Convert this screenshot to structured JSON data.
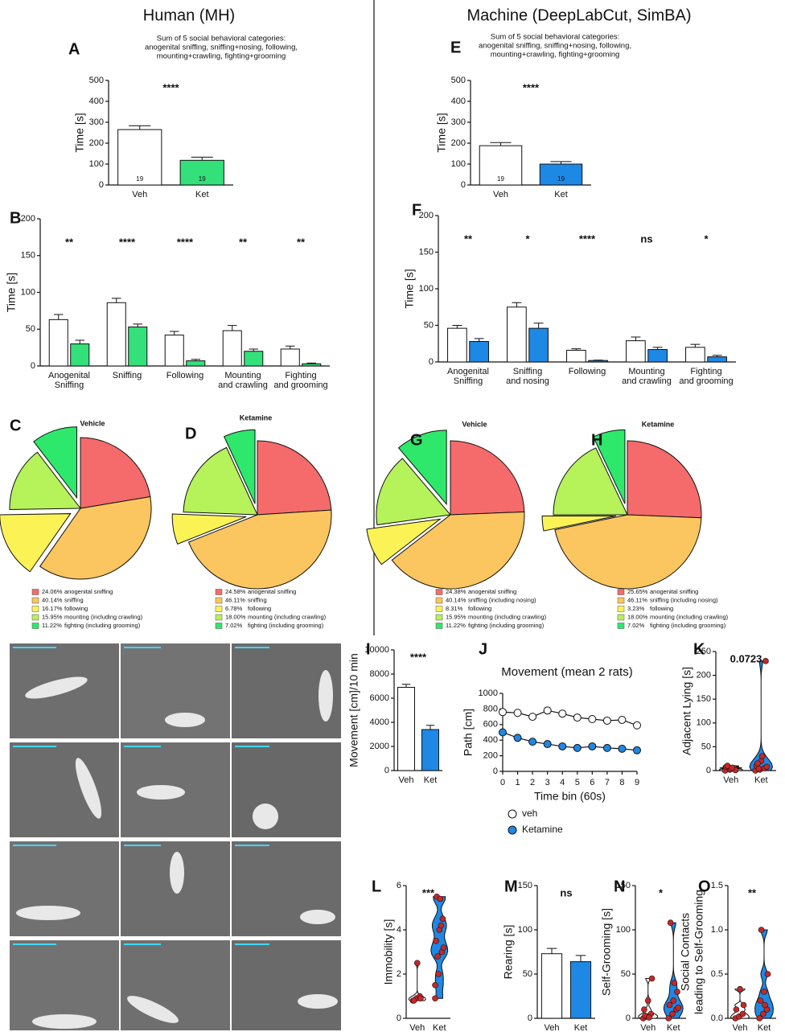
{
  "headers": [
    "Human (MH)",
    "Machine (DeepLabCut, SimBA)"
  ],
  "chart_data": [
    {
      "type": "bar",
      "label": "A",
      "title": [
        "Sum of 5 social behavioral categories:",
        "anogenital sniffing, sniffing+nosing, following,",
        "mounting+crawling, fighting+grooming"
      ],
      "ylabel": "Time [s]",
      "categories": [
        [
          "Veh"
        ],
        [
          "Ket"
        ]
      ],
      "series": [
        {
          "colors": [
            "#ffffff",
            "#33e07a"
          ],
          "values": [
            265,
            118
          ],
          "errors": [
            18,
            15
          ],
          "counts": [
            19,
            19
          ]
        }
      ],
      "stars": [
        "****"
      ],
      "ylim": [
        0,
        500
      ],
      "yticks": [
        0,
        100,
        200,
        300,
        400,
        500
      ]
    },
    {
      "type": "bar",
      "label": "E",
      "title": [
        "Sum of 5 social behavioral categories:",
        "anogenital sniffing, sniffing+nosing, following,",
        "mounting+crawling, fighting+grooming"
      ],
      "ylabel": "Time [s]",
      "categories": [
        [
          "Veh"
        ],
        [
          "Ket"
        ]
      ],
      "series": [
        {
          "colors": [
            "#ffffff",
            "#1e88e5"
          ],
          "values": [
            188,
            100
          ],
          "errors": [
            15,
            12
          ],
          "counts": [
            19,
            19
          ]
        }
      ],
      "stars": [
        "****"
      ],
      "ylim": [
        0,
        500
      ],
      "yticks": [
        0,
        100,
        200,
        300,
        400,
        500
      ]
    },
    {
      "type": "bar",
      "label": "B",
      "ylabel": "Time [s]",
      "categories": [
        [
          "Anogenital",
          "Sniffing"
        ],
        [
          "Sniffing"
        ],
        [
          "Following"
        ],
        [
          "Mounting",
          "and crawling"
        ],
        [
          "Fighting",
          "and grooming"
        ]
      ],
      "series": [
        {
          "color": "#ffffff",
          "values": [
            63,
            86,
            42,
            48,
            23
          ],
          "errors": [
            7,
            6,
            5,
            7,
            4
          ]
        },
        {
          "color": "#33e07a",
          "values": [
            30,
            53,
            7,
            20,
            3
          ],
          "errors": [
            5,
            4,
            2,
            3,
            1
          ]
        }
      ],
      "stars": [
        "**",
        "****",
        "****",
        "**",
        "**"
      ],
      "ylim": [
        0,
        200
      ],
      "yticks": [
        0,
        50,
        100,
        150,
        200
      ]
    },
    {
      "type": "bar",
      "label": "F",
      "ylabel": "Time [s]",
      "categories": [
        [
          "Anogenital",
          "Sniffing"
        ],
        [
          "Sniffing",
          "and nosing"
        ],
        [
          "Following"
        ],
        [
          "Mounting",
          "and crawling"
        ],
        [
          "Fighting",
          "and grooming"
        ]
      ],
      "series": [
        {
          "color": "#ffffff",
          "values": [
            46,
            75,
            16,
            29,
            20
          ],
          "errors": [
            4,
            6,
            2,
            5,
            4
          ]
        },
        {
          "color": "#1e88e5",
          "values": [
            28,
            46,
            2,
            17,
            7
          ],
          "errors": [
            4,
            7,
            0.5,
            3,
            2
          ]
        }
      ],
      "stars": [
        "**",
        "*",
        "****",
        "ns",
        "*"
      ],
      "ylim": [
        0,
        200
      ],
      "yticks": [
        0,
        50,
        100,
        150,
        200
      ]
    },
    {
      "type": "pie",
      "label": "C",
      "title": "Vehicle",
      "categories": [
        "anogenital sniffing",
        "sniffing",
        "following",
        "mounting (including crawling)",
        "fighting (including grooming)"
      ],
      "values": [
        24.06,
        40.14,
        16.17,
        15.95,
        11.22
      ],
      "value_labels": [
        "24.06%",
        "40.14%",
        "16.17%",
        "15.95%",
        "11.22%"
      ],
      "colors": [
        "#f56b6b",
        "#fbc55f",
        "#fbf356",
        "#b6f25a",
        "#2ee86b"
      ]
    },
    {
      "type": "pie",
      "label": "D",
      "title": "Ketamine",
      "categories": [
        "anogenital sniffing",
        "sniffing",
        "following",
        "mounting (including crawling)",
        "fighting (including grooming)"
      ],
      "values": [
        24.58,
        46.11,
        6.78,
        18.0,
        7.02
      ],
      "value_labels": [
        "24.58%",
        "46.11%",
        "6.78%",
        "18.00%",
        "7.02%"
      ],
      "colors": [
        "#f56b6b",
        "#fbc55f",
        "#fbf356",
        "#b6f25a",
        "#2ee86b"
      ]
    },
    {
      "type": "pie",
      "label": "G",
      "title": "Vehicle",
      "categories": [
        "anogenital sniffing",
        "sniffing (including nosing)",
        "following",
        "mounting (including crawling)",
        "fighting (including grooming)"
      ],
      "values": [
        24.38,
        40.14,
        8.31,
        15.95,
        11.22
      ],
      "value_labels": [
        "24.38%",
        "40.14%",
        "8.31%",
        "15.95%",
        "11.22%"
      ],
      "colors": [
        "#f56b6b",
        "#fbc55f",
        "#fbf356",
        "#b6f25a",
        "#2ee86b"
      ]
    },
    {
      "type": "pie",
      "label": "H",
      "title": "Ketamine",
      "categories": [
        "anogenital sniffing",
        "sniffing (including nosing)",
        "following",
        "mounting (including crawling)",
        "fighting (including grooming)"
      ],
      "values": [
        25.65,
        46.11,
        3.23,
        18.0,
        7.02
      ],
      "value_labels": [
        "25.65%",
        "46.11%",
        "3.23%",
        "18.00%",
        "7.02%"
      ],
      "colors": [
        "#f56b6b",
        "#fbc55f",
        "#fbf356",
        "#b6f25a",
        "#2ee86b"
      ]
    },
    {
      "type": "bar",
      "label": "I",
      "ylabel": "Movement [cm]/10 min",
      "categories": [
        [
          "Veh"
        ],
        [
          "Ket"
        ]
      ],
      "series": [
        {
          "colors": [
            "#ffffff",
            "#1e88e5"
          ],
          "values": [
            6900,
            3400
          ],
          "errors": [
            250,
            350
          ]
        }
      ],
      "stars": [
        "****"
      ],
      "ylim": [
        0,
        10000
      ],
      "yticks": [
        0,
        2000,
        4000,
        6000,
        8000,
        10000
      ]
    },
    {
      "type": "line",
      "label": "J",
      "title": "Movement (mean 2 rats)",
      "ylabel": "Path [cm]",
      "xlabel": "Time bin (60s)",
      "x": [
        0,
        1,
        2,
        3,
        4,
        5,
        6,
        7,
        8,
        9
      ],
      "series": [
        {
          "name": "veh",
          "color": "#ffffff",
          "values": [
            760,
            750,
            700,
            780,
            740,
            690,
            670,
            650,
            660,
            590
          ],
          "errors": [
            25,
            35,
            30,
            40,
            35,
            35,
            25,
            25,
            30,
            30
          ]
        },
        {
          "name": "Ketamine",
          "color": "#1e88e5",
          "values": [
            500,
            430,
            380,
            350,
            320,
            300,
            320,
            300,
            290,
            270
          ],
          "errors": [
            20,
            20,
            25,
            30,
            30,
            25,
            30,
            25,
            25,
            25
          ]
        }
      ],
      "xlim": [
        0,
        9
      ],
      "xticks": [
        0,
        1,
        2,
        3,
        4,
        5,
        6,
        7,
        8,
        9
      ],
      "ylim": [
        0,
        1000
      ],
      "yticks": [
        0,
        200,
        400,
        600,
        800,
        1000
      ]
    },
    {
      "type": "violin",
      "label": "K",
      "ylabel": "Adjacent Lying [s]",
      "categories": [
        [
          "Veh"
        ],
        [
          "Ket"
        ]
      ],
      "colors": [
        "#ffffff",
        "#1e88e5"
      ],
      "groups": [
        [
          0,
          2,
          5,
          8,
          3,
          1,
          10,
          6
        ],
        [
          0,
          2,
          5,
          10,
          20,
          230,
          15,
          30,
          8,
          4
        ]
      ],
      "stars": [
        "0.0723"
      ],
      "ylim": [
        0,
        250
      ],
      "yticks": [
        0,
        50,
        100,
        150,
        200,
        250
      ]
    },
    {
      "type": "violin",
      "label": "L",
      "ylabel": "Immobility [s]",
      "categories": [
        [
          "Veh"
        ],
        [
          "Ket"
        ]
      ],
      "colors": [
        "#ffffff",
        "#1e88e5"
      ],
      "groups": [
        [
          0.8,
          0.9,
          1.0,
          0.8,
          2.5,
          0.9
        ],
        [
          0.9,
          2,
          3,
          3.5,
          4,
          4.5,
          5.5,
          5.4,
          3.2,
          2.8,
          4.2,
          1.5
        ]
      ],
      "stars": [
        "***"
      ],
      "ylim": [
        0,
        6
      ],
      "yticks": [
        0,
        2,
        4,
        6
      ]
    },
    {
      "type": "bar",
      "label": "M",
      "ylabel": "Rearing [s]",
      "categories": [
        [
          "Veh"
        ],
        [
          "Ket"
        ]
      ],
      "series": [
        {
          "colors": [
            "#ffffff",
            "#1e88e5"
          ],
          "values": [
            73,
            64
          ],
          "errors": [
            6,
            7
          ]
        }
      ],
      "stars": [
        "ns"
      ],
      "ylim": [
        0,
        150
      ],
      "yticks": [
        0,
        50,
        100,
        150
      ]
    },
    {
      "type": "violin",
      "label": "N",
      "ylabel": "Self-Grooming [s]",
      "categories": [
        [
          "Veh"
        ],
        [
          "Ket"
        ]
      ],
      "colors": [
        "#ffffff",
        "#1e88e5"
      ],
      "groups": [
        [
          0,
          2,
          5,
          10,
          20,
          45,
          3,
          1
        ],
        [
          0,
          5,
          10,
          15,
          20,
          30,
          108,
          40,
          12
        ]
      ],
      "stars": [
        "*"
      ],
      "ylim": [
        0,
        150
      ],
      "yticks": [
        0,
        50,
        100,
        150
      ]
    },
    {
      "type": "violin",
      "label": "O",
      "ylabel": [
        "Social Contacts",
        "leading to Self-Grooming"
      ],
      "categories": [
        [
          "Veh"
        ],
        [
          "Ket"
        ]
      ],
      "colors": [
        "#ffffff",
        "#1e88e5"
      ],
      "groups": [
        [
          0,
          0.02,
          0.05,
          0.1,
          0.33,
          0.15
        ],
        [
          0,
          0.05,
          0.1,
          0.2,
          0.3,
          0.5,
          1.0,
          0.15
        ]
      ],
      "stars": [
        "**"
      ],
      "ylim": [
        0,
        1.5
      ],
      "yticks": [
        {
          "value": 0,
          "label": "0.0"
        },
        0.5,
        {
          "value": 1,
          "label": "1.0"
        },
        1.5
      ]
    }
  ]
}
